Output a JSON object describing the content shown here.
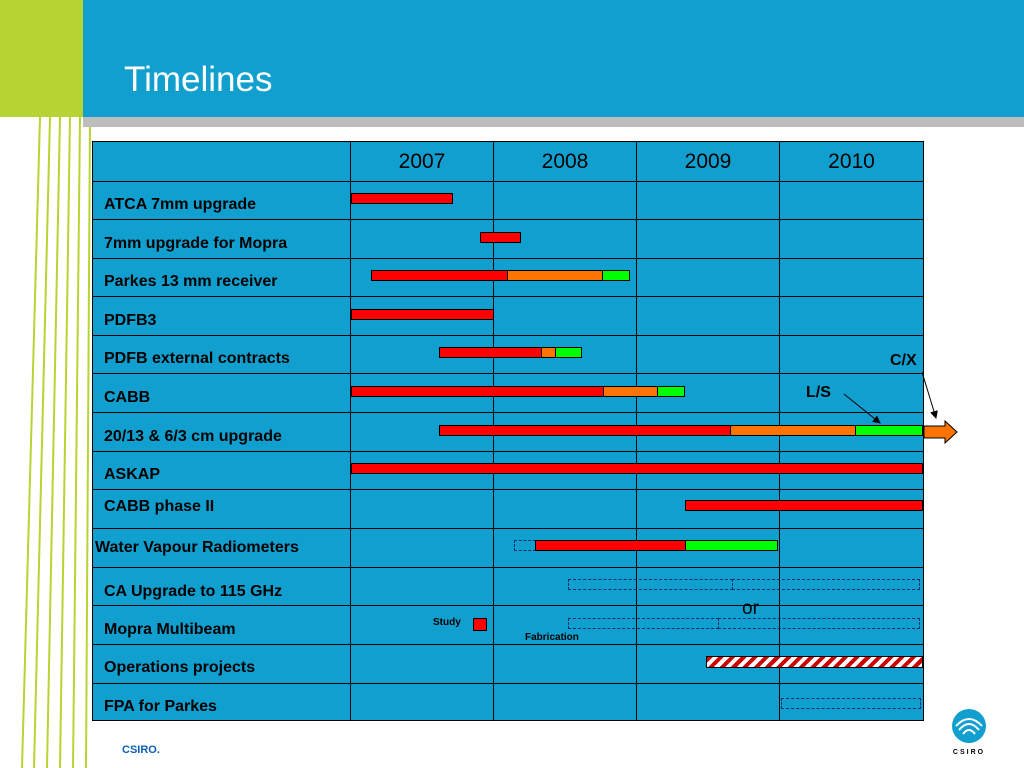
{
  "slide": {
    "title": "Timelines",
    "footer": "CSIRO.",
    "logo_text": "CSIRO"
  },
  "years": [
    "2007",
    "2008",
    "2009",
    "2010"
  ],
  "projects": [
    {
      "label": "ATCA 7mm upgrade"
    },
    {
      "label": "7mm upgrade for Mopra"
    },
    {
      "label": "Parkes 13 mm receiver"
    },
    {
      "label": "PDFB3"
    },
    {
      "label": "PDFB external contracts"
    },
    {
      "label": "CABB"
    },
    {
      "label": "20/13 & 6/3 cm upgrade"
    },
    {
      "label": "ASKAP"
    },
    {
      "label": "CABB phase II"
    },
    {
      "label": "Water Vapour Radiometers"
    },
    {
      "label": "CA Upgrade to 115 GHz"
    },
    {
      "label": "Mopra Multibeam"
    },
    {
      "label": "Operations projects"
    },
    {
      "label": "FPA for Parkes"
    }
  ],
  "annotations": {
    "cx": "C/X",
    "ls": "L/S",
    "or": "or",
    "study": "Study",
    "fabrication": "Fabrication"
  },
  "colors": {
    "header": "#119fcf",
    "accent_green": "#b6d433",
    "phase_red": "#ff0000",
    "phase_orange": "#ff7300",
    "phase_green": "#00ff00"
  }
}
